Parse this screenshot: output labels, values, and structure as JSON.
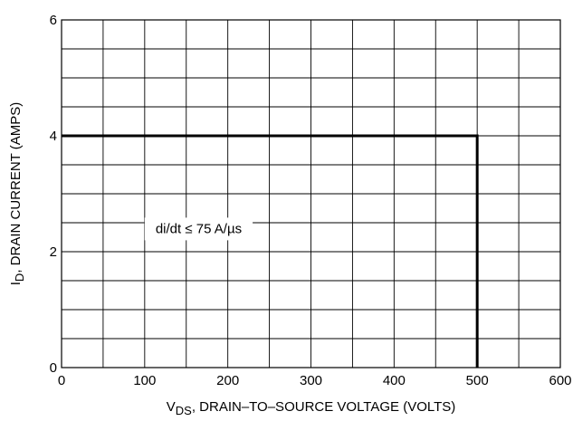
{
  "chart_data": {
    "type": "line",
    "title": "",
    "xlabel": {
      "main": "V",
      "sub": "DS",
      "rest": ", DRAIN–TO–SOURCE VOLTAGE (VOLTS)"
    },
    "ylabel": {
      "main": "I",
      "sub": "D",
      "rest": ", DRAIN CURRENT (AMPS)"
    },
    "xlim": [
      0,
      600
    ],
    "ylim": [
      0,
      6
    ],
    "x_ticks": [
      0,
      100,
      200,
      300,
      400,
      500,
      600
    ],
    "y_ticks": [
      0,
      2,
      4,
      6
    ],
    "x_minor_step": 50,
    "y_minor_step": 0.5,
    "grid": true,
    "series": [
      {
        "x": [
          0,
          500,
          500
        ],
        "y": [
          4,
          4,
          0
        ]
      }
    ],
    "annotation": {
      "text": "di/dt ≤ 75 A/µs",
      "x": 100,
      "y": 2.4
    }
  }
}
